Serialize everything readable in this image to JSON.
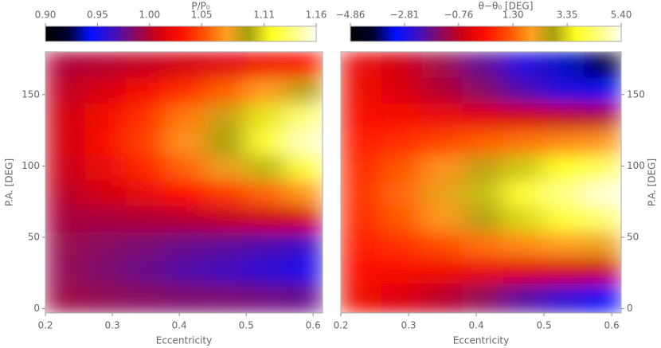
{
  "chart_data": [
    {
      "type": "heatmap",
      "title": "P/P₀",
      "x_label": "Eccentricity",
      "y_label": "P.A. [DEG]",
      "y_axis_side": "left",
      "x": [
        0.23,
        0.29,
        0.35,
        0.41,
        0.47,
        0.53,
        0.59
      ],
      "y": [
        9,
        27,
        45,
        63,
        81,
        99,
        117,
        135,
        153,
        171
      ],
      "z": [
        [
          0.993,
          0.989,
          0.986,
          0.983,
          0.982,
          0.979,
          0.976
        ],
        [
          0.99,
          0.983,
          0.977,
          0.97,
          0.965,
          0.958,
          0.95
        ],
        [
          0.991,
          0.986,
          0.982,
          0.977,
          0.974,
          0.969,
          0.963
        ],
        [
          0.996,
          0.996,
          0.998,
          1.0,
          1.004,
          1.007,
          1.009
        ],
        [
          1.002,
          1.01,
          1.019,
          1.03,
          1.044,
          1.057,
          1.071
        ],
        [
          1.007,
          1.021,
          1.038,
          1.057,
          1.078,
          1.101,
          1.124
        ],
        [
          1.01,
          1.027,
          1.047,
          1.07,
          1.095,
          1.122,
          1.15
        ],
        [
          1.009,
          1.024,
          1.042,
          1.063,
          1.086,
          1.111,
          1.137
        ],
        [
          1.004,
          1.014,
          1.026,
          1.04,
          1.056,
          1.073,
          1.091
        ],
        [
          0.998,
          1.0,
          1.005,
          1.01,
          1.016,
          1.023,
          1.029
        ]
      ],
      "xlim": [
        0.2,
        0.614
      ],
      "ylim": [
        -3,
        180
      ],
      "xticks": [
        0.2,
        0.3,
        0.4,
        0.5,
        0.6
      ],
      "yticks": [
        0,
        50,
        100,
        150
      ],
      "clim": [
        0.9,
        1.16
      ],
      "cticks": [
        {
          "value": 0.9,
          "label": "0.90"
        },
        {
          "value": 0.95,
          "label": "0.95"
        },
        {
          "value": 1.0,
          "label": "1.00"
        },
        {
          "value": 1.05,
          "label": "1.05"
        },
        {
          "value": 1.11,
          "label": "1.11"
        },
        {
          "value": 1.16,
          "label": "1.16"
        }
      ],
      "colormap": [
        "#000000",
        "#000030",
        "#0010ff",
        "#4010c0",
        "#8a0a60",
        "#d00010",
        "#ff1000",
        "#ff5000",
        "#ffa020",
        "#a8a010",
        "#ffff20",
        "#ffff80",
        "#fffff0"
      ]
    },
    {
      "type": "heatmap",
      "title": "θ−θ₀ [DEG]",
      "x_label": "Eccentricity",
      "y_label": "P.A. [DEG]",
      "y_axis_side": "right",
      "x": [
        0.23,
        0.29,
        0.35,
        0.41,
        0.47,
        0.53,
        0.59
      ],
      "y": [
        9,
        27,
        45,
        63,
        81,
        99,
        117,
        135,
        153,
        171
      ],
      "z": [
        [
          -0.02,
          -0.39,
          -0.84,
          -1.37,
          -2.0,
          -2.55,
          -3.03
        ],
        [
          0.19,
          0.12,
          0.03,
          -0.09,
          -0.31,
          -0.5,
          -0.67
        ],
        [
          0.44,
          0.74,
          1.08,
          1.46,
          1.73,
          1.97,
          2.17
        ],
        [
          0.63,
          1.23,
          1.91,
          2.67,
          3.34,
          3.92,
          4.41
        ],
        [
          0.7,
          1.4,
          2.2,
          3.1,
          3.9,
          4.6,
          5.2
        ],
        [
          0.62,
          1.19,
          1.84,
          2.57,
          3.2,
          3.75,
          4.22
        ],
        [
          0.41,
          0.68,
          0.97,
          1.29,
          1.51,
          1.7,
          1.87
        ],
        [
          0.16,
          0.06,
          -0.08,
          -0.26,
          -0.53,
          -0.77,
          -0.97
        ],
        [
          -0.03,
          -0.43,
          -0.91,
          -1.47,
          -2.14,
          -2.72,
          -3.21
        ],
        [
          -0.1,
          -0.6,
          -1.2,
          -1.9,
          -2.7,
          -3.4,
          -4.0
        ]
      ],
      "xlim": [
        0.2,
        0.614
      ],
      "ylim": [
        -3,
        180
      ],
      "xticks": [
        0.2,
        0.3,
        0.4,
        0.5,
        0.6
      ],
      "yticks": [
        0,
        50,
        100,
        150
      ],
      "clim": [
        -4.86,
        5.4
      ],
      "cticks": [
        {
          "value": -4.86,
          "label": "−4.86"
        },
        {
          "value": -2.81,
          "label": "−2.81"
        },
        {
          "value": -0.76,
          "label": "−0.76"
        },
        {
          "value": 1.3,
          "label": "1.30"
        },
        {
          "value": 3.35,
          "label": "3.35"
        },
        {
          "value": 5.4,
          "label": "5.40"
        }
      ],
      "colormap": [
        "#000000",
        "#000030",
        "#0010ff",
        "#4010c0",
        "#8a0a60",
        "#d00010",
        "#ff1000",
        "#ff5000",
        "#ffa020",
        "#a8a010",
        "#ffff20",
        "#ffff80",
        "#fffff0"
      ]
    }
  ]
}
